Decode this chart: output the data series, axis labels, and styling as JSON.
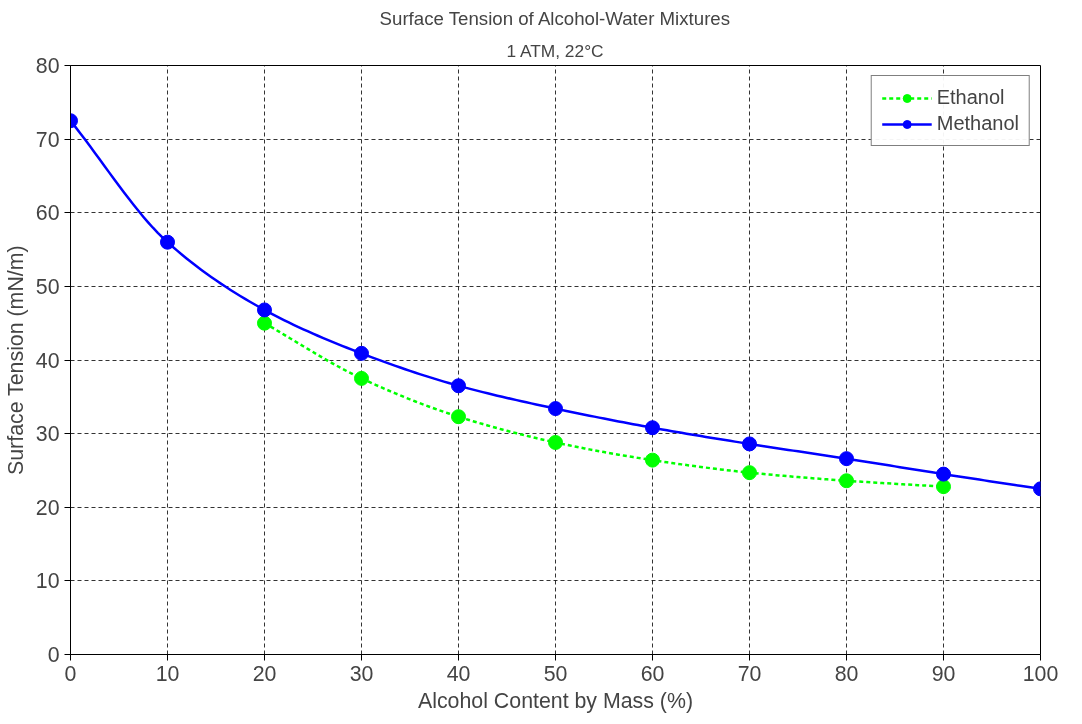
{
  "chart_data": {
    "type": "line",
    "title": "Surface Tension of Alcohol-Water Mixtures",
    "subtitle": "1 ATM, 22°C",
    "xlabel": "Alcohol Content by Mass (%)",
    "ylabel": "Surface Tension (mN/m)",
    "x": [
      0,
      10,
      20,
      30,
      40,
      50,
      60,
      70,
      80,
      90,
      100
    ],
    "series": [
      {
        "name": "Ethanol",
        "color": "#00ff00",
        "line_style": "dashed",
        "values": [
          null,
          null,
          45,
          37.5,
          32.3,
          28.8,
          26.4,
          24.7,
          23.6,
          22.8,
          null
        ]
      },
      {
        "name": "Methanol",
        "color": "#0000ff",
        "line_style": "solid",
        "values": [
          72.5,
          56,
          46.8,
          40.9,
          36.5,
          33.4,
          30.8,
          28.6,
          26.6,
          24.5,
          22.5
        ]
      }
    ],
    "xlim": [
      0,
      100
    ],
    "ylim": [
      0,
      80
    ],
    "xticks": [
      0,
      10,
      20,
      30,
      40,
      50,
      60,
      70,
      80,
      90,
      100
    ],
    "yticks": [
      0,
      10,
      20,
      30,
      40,
      50,
      60,
      70,
      80
    ],
    "grid": true,
    "legend": "top right",
    "marker": "circle"
  }
}
